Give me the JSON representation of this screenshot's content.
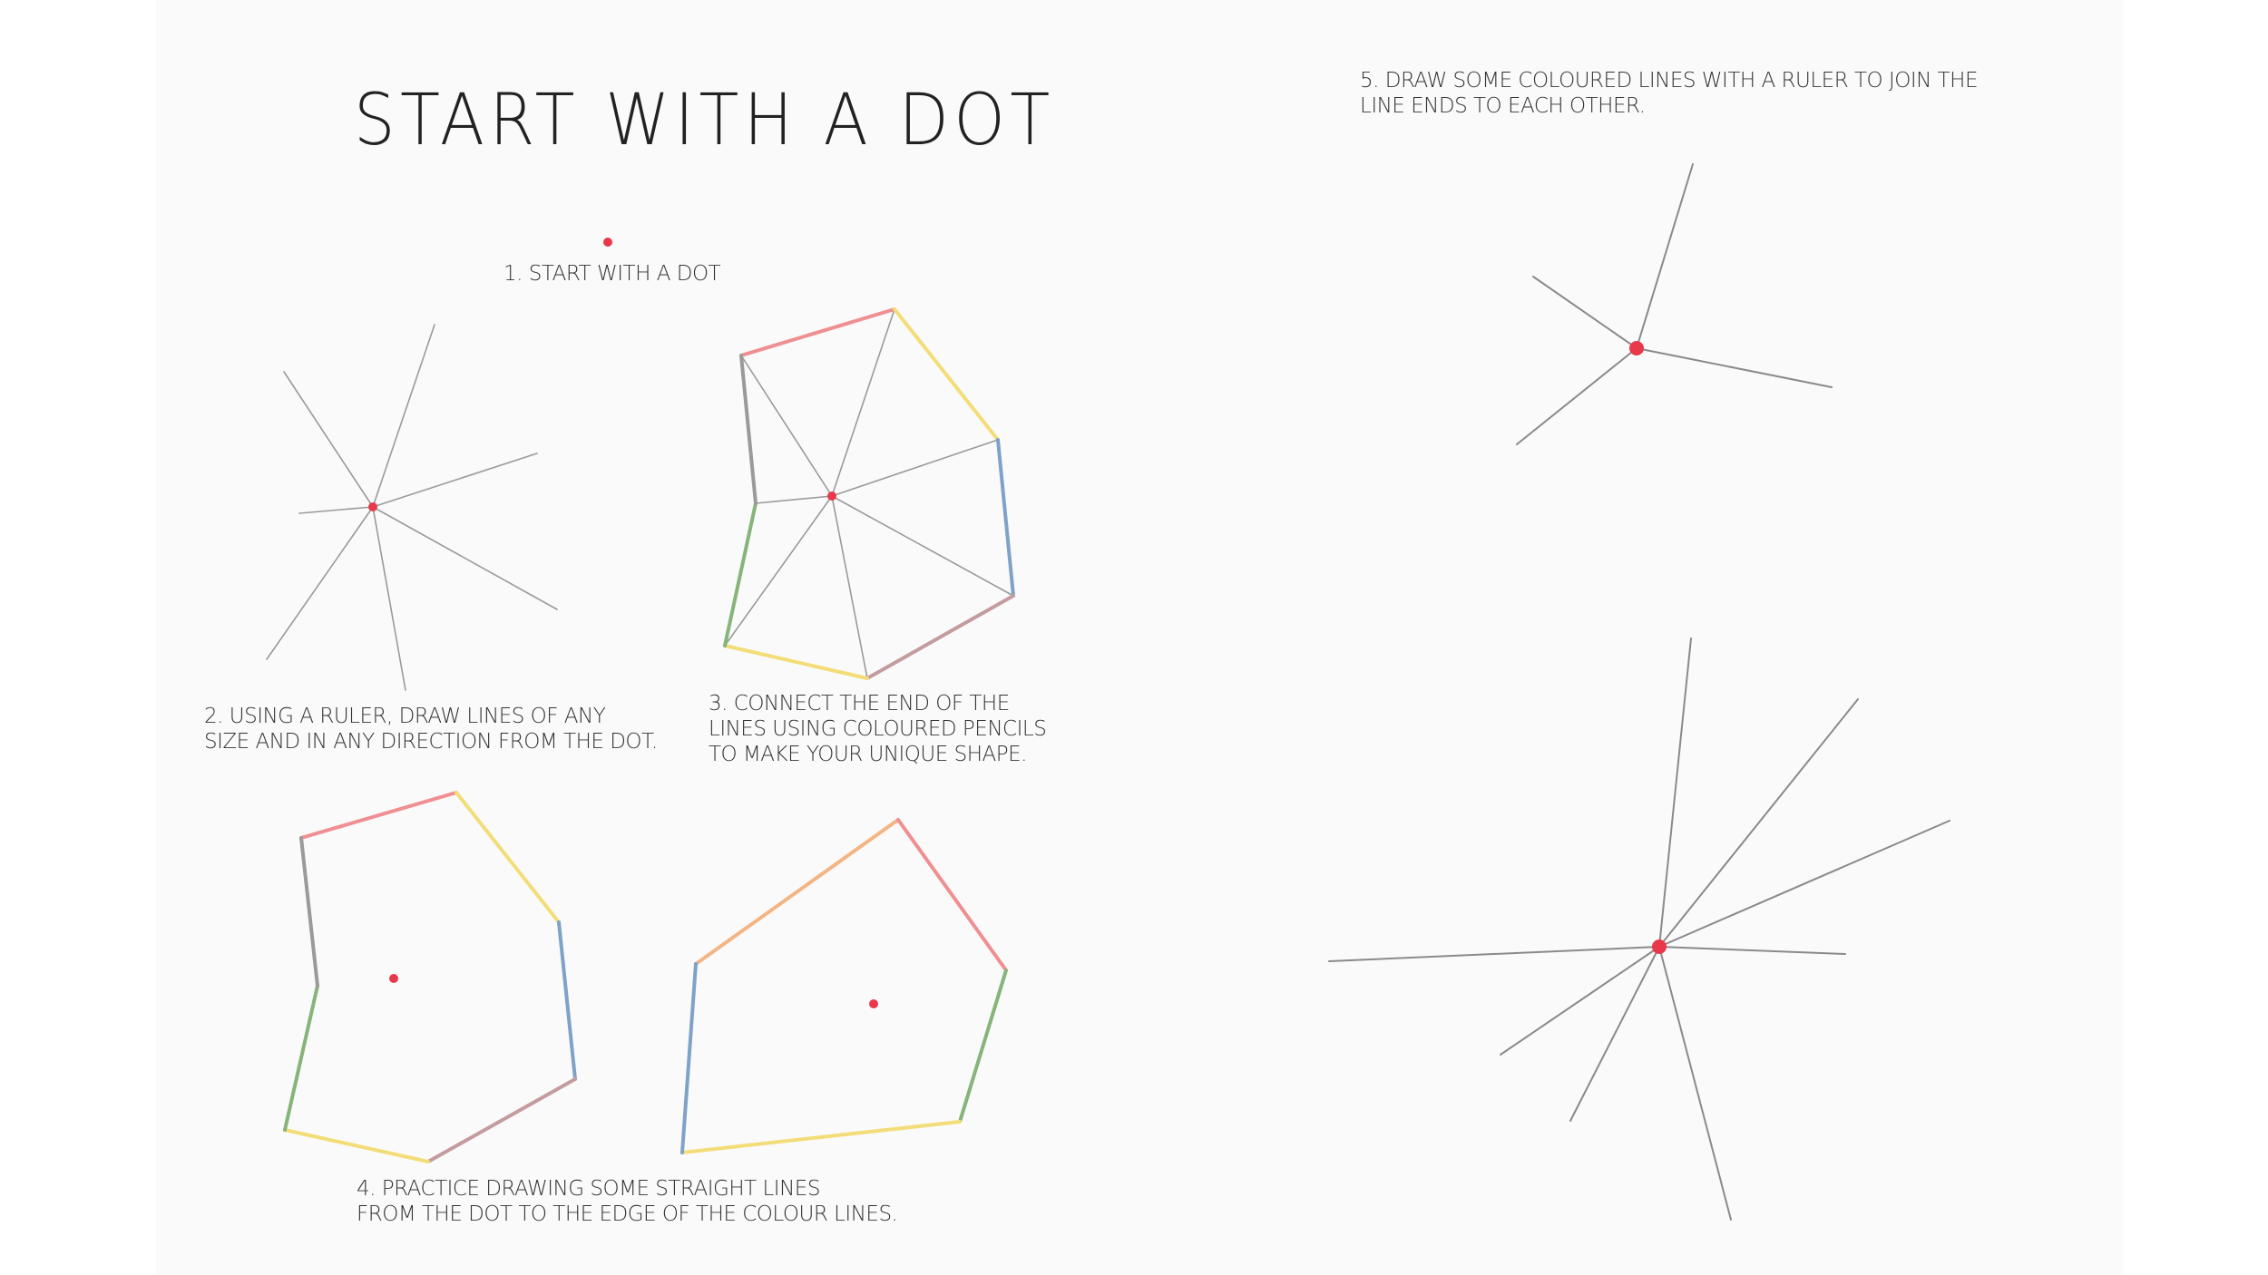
{
  "title": "START WITH A DOT",
  "steps": {
    "s1": "1. START WITH A DOT",
    "s2": "2. USING A RULER, DRAW LINES OF ANY\nSIZE AND IN ANY DIRECTION FROM THE DOT.",
    "s3": "3. CONNECT THE END OF THE\nLINES USING COLOURED PENCILS\nTO MAKE YOUR UNIQUE SHAPE.",
    "s4": "4. PRACTICE DRAWING SOME STRAIGHT LINES\nFROM THE DOT TO THE EDGE OF THE COLOUR LINES.",
    "s5": "5. DRAW SOME COLOURED LINES WITH A RULER TO JOIN THE\nLINE ENDS TO EACH OTHER."
  },
  "colors": {
    "dot": "#e8384a",
    "grey_line": "#8a8a8a",
    "red_pencil": "#ef8f92",
    "yellow_pencil": "#f3dd78",
    "blue_pencil": "#7fa2c8",
    "green_pencil": "#87b47a",
    "mauve_pencil": "#c49ca0",
    "orange_pencil": "#f4b585"
  },
  "icons": [
    "red-dot",
    "ray-lines",
    "coloured-pencil-outline"
  ]
}
